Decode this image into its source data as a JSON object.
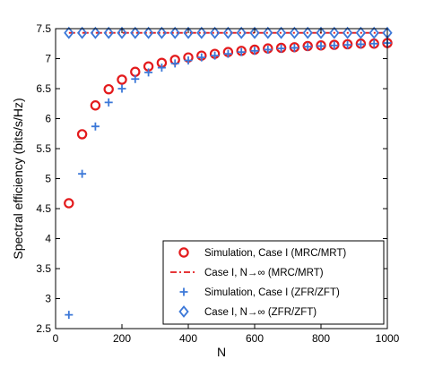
{
  "chart_data": {
    "type": "scatter",
    "xlabel": "N",
    "ylabel": "Spectral efficiency (bits/s/Hz)",
    "xlim": [
      0,
      1000
    ],
    "ylim": [
      2.5,
      7.5
    ],
    "xticks": [
      "0",
      "200",
      "400",
      "600",
      "800",
      "1000"
    ],
    "yticks": [
      "2.5",
      "3",
      "3.5",
      "4",
      "4.5",
      "5",
      "5.5",
      "6",
      "6.5",
      "7",
      "7.5"
    ],
    "grid": false,
    "legend_position": "bottom-right",
    "series": [
      {
        "name": "Simulation, Case I (MRC/MRT)",
        "marker": "circle",
        "color": "#e31a1c",
        "x": [
          40,
          80,
          120,
          160,
          200,
          240,
          280,
          320,
          360,
          400,
          440,
          480,
          520,
          560,
          600,
          640,
          680,
          720,
          760,
          800,
          840,
          880,
          920,
          960,
          1000
        ],
        "y": [
          4.59,
          5.74,
          6.22,
          6.49,
          6.65,
          6.78,
          6.87,
          6.93,
          6.98,
          7.02,
          7.05,
          7.08,
          7.11,
          7.13,
          7.15,
          7.17,
          7.18,
          7.19,
          7.21,
          7.22,
          7.23,
          7.24,
          7.25,
          7.25,
          7.26
        ]
      },
      {
        "name": "Case I, N→∞ (MRC/MRT)",
        "marker": "dash-line",
        "color": "#e31a1c",
        "x": [
          40,
          1000
        ],
        "y": [
          7.43,
          7.43
        ]
      },
      {
        "name": "Simulation, Case I (ZFR/ZFT)",
        "marker": "plus",
        "color": "#3c78d8",
        "x": [
          40,
          80,
          120,
          160,
          200,
          240,
          280,
          320,
          360,
          400,
          440,
          480,
          520,
          560,
          600,
          640,
          680,
          720,
          760,
          800,
          840,
          880,
          920,
          960,
          1000
        ],
        "y": [
          2.73,
          5.08,
          5.87,
          6.27,
          6.5,
          6.66,
          6.77,
          6.85,
          6.92,
          6.97,
          7.02,
          7.05,
          7.08,
          7.11,
          7.13,
          7.15,
          7.17,
          7.18,
          7.2,
          7.21,
          7.22,
          7.23,
          7.24,
          7.25,
          7.26
        ]
      },
      {
        "name": "Case I, N→∞ (ZFR/ZFT)",
        "marker": "diamond",
        "color": "#3c78d8",
        "x": [
          40,
          80,
          120,
          160,
          200,
          240,
          280,
          320,
          360,
          400,
          440,
          480,
          520,
          560,
          600,
          640,
          680,
          720,
          760,
          800,
          840,
          880,
          920,
          960,
          1000
        ],
        "y": [
          7.43,
          7.43,
          7.43,
          7.43,
          7.43,
          7.43,
          7.43,
          7.43,
          7.43,
          7.43,
          7.43,
          7.43,
          7.43,
          7.43,
          7.43,
          7.43,
          7.43,
          7.43,
          7.43,
          7.43,
          7.43,
          7.43,
          7.43,
          7.43,
          7.43
        ]
      }
    ]
  }
}
